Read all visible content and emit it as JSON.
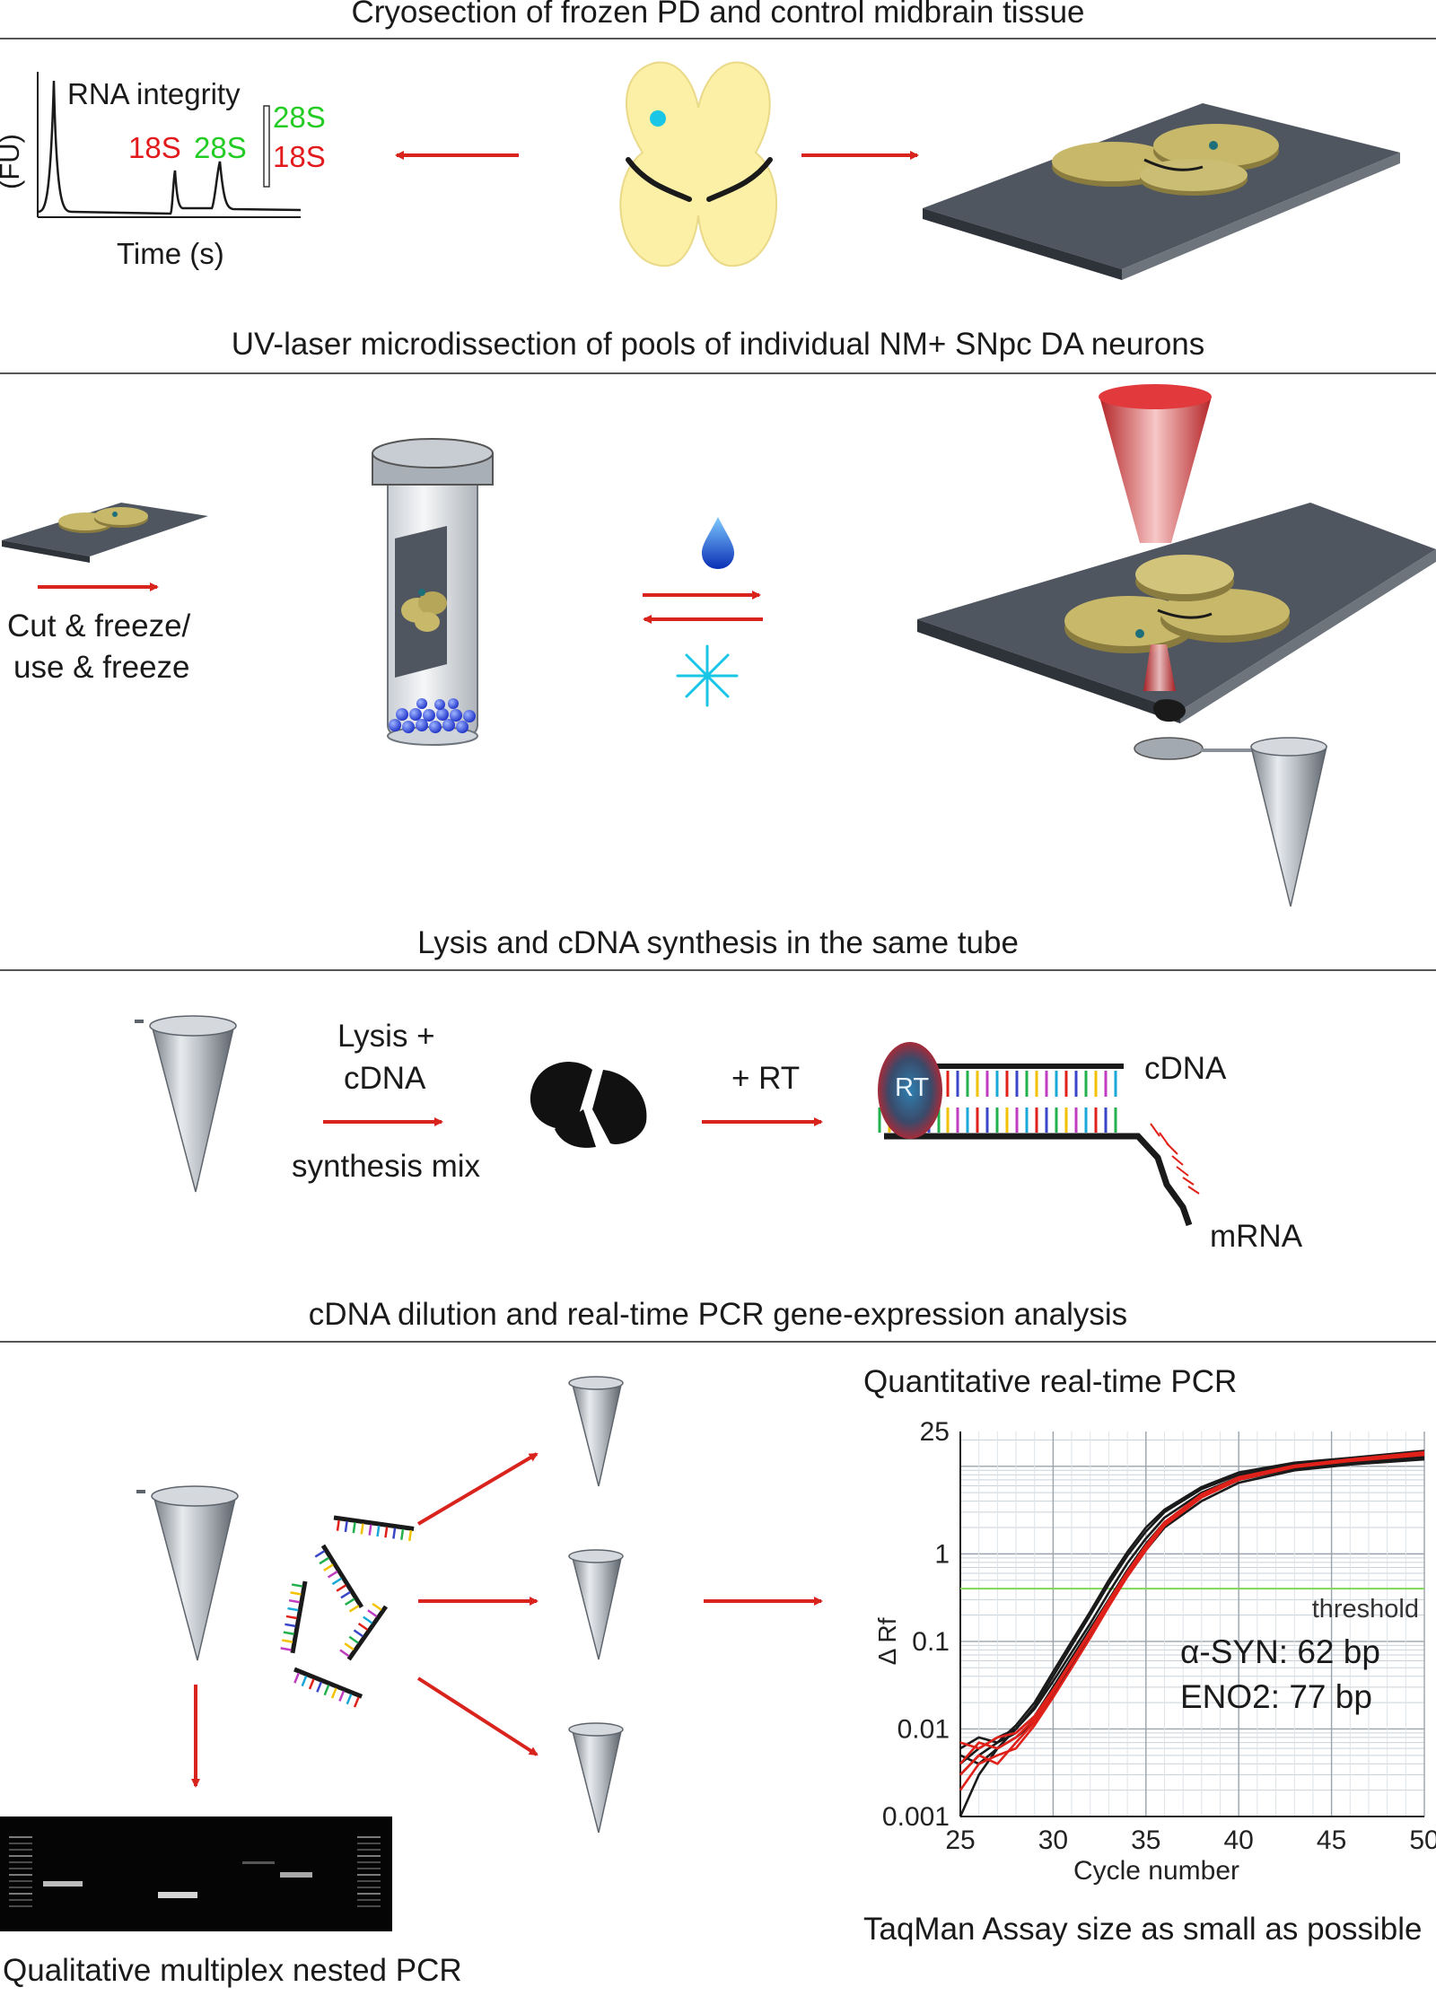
{
  "sections": {
    "s1": {
      "heading": "Cryosection of frozen PD and control midbrain tissue"
    },
    "s2": {
      "heading": "UV-laser microdissection of pools of individual NM+ SNpc DA neurons"
    },
    "s3": {
      "heading": "Lysis and cDNA synthesis in the same tube"
    },
    "s4": {
      "heading": "cDNA dilution and real-time PCR gene-expression analysis"
    }
  },
  "rna_panel": {
    "title": "RNA integrity",
    "ylabel": "(FU)",
    "xlabel": "Time (s)",
    "peak_18s": "18S",
    "peak_28s": "28S",
    "ratio_top": "28S",
    "ratio_bottom": "18S",
    "color_18s": "#e31a1c",
    "color_28s": "#22cc22"
  },
  "ulm": {
    "cut_label_1": "Cut & freeze/",
    "cut_label_2": "use & freeze"
  },
  "lysis": {
    "mix_label_1": "Lysis +",
    "mix_label_2": "cDNA",
    "mix_label_3": "synthesis mix",
    "rt_step": "+ RT",
    "rt_badge": "RT",
    "cdna": "cDNA",
    "mrna": "mRNA"
  },
  "pcr": {
    "qpcr_title": "Quantitative real-time PCR",
    "qualitative_caption": "Qualitative multiplex nested PCR",
    "taqman_caption": "TaqMan Assay size as small as possible",
    "assay_1": "α-SYN: 62 bp",
    "assay_2": "ENO2: 77 bp"
  },
  "colors": {
    "arrow_red": "#d9231d",
    "tissue_yellow": "#fbf0a6",
    "slide_gray": "#4f5660",
    "cyan": "#19c6e6",
    "threshold_green": "#7fd65a"
  },
  "chart_data": {
    "type": "line",
    "title": "Quantitative real-time PCR",
    "xlabel": "Cycle number",
    "ylabel": "Δ Rf",
    "xlim": [
      25,
      50
    ],
    "ylim": [
      0.001,
      25
    ],
    "yscale": "log",
    "x_ticks": [
      "25",
      "30",
      "35",
      "40",
      "45",
      "50"
    ],
    "y_ticks": [
      "0.001",
      "0.01",
      "0.1",
      "1",
      "25"
    ],
    "threshold": {
      "label": "threshold",
      "value": 0.4
    },
    "grid": true,
    "series": [
      {
        "color": "#1a1a1a",
        "x": [
          25,
          26,
          27,
          28,
          29,
          30,
          31,
          32,
          33,
          34,
          35,
          36,
          38,
          40,
          43,
          46,
          50
        ],
        "y": [
          0.004,
          0.006,
          0.008,
          0.01,
          0.018,
          0.04,
          0.09,
          0.2,
          0.45,
          0.95,
          1.8,
          3,
          5.5,
          8,
          10.5,
          12,
          14
        ]
      },
      {
        "color": "#1a1a1a",
        "x": [
          25,
          26,
          27,
          28,
          29,
          30,
          31,
          32,
          33,
          34,
          35,
          36,
          38,
          40,
          43,
          46,
          50
        ],
        "y": [
          0.003,
          0.005,
          0.007,
          0.011,
          0.02,
          0.045,
          0.1,
          0.22,
          0.5,
          1.05,
          2,
          3.2,
          5.8,
          8.5,
          11,
          12.5,
          15
        ]
      },
      {
        "color": "#1a1a1a",
        "x": [
          25,
          26,
          27,
          28,
          29,
          30,
          31,
          32,
          33,
          34,
          35,
          36,
          38,
          40,
          43,
          46,
          50
        ],
        "y": [
          0.006,
          0.008,
          0.007,
          0.009,
          0.014,
          0.03,
          0.065,
          0.14,
          0.3,
          0.65,
          1.3,
          2.3,
          4.5,
          7,
          9.5,
          11,
          12.5
        ]
      },
      {
        "color": "#1a1a1a",
        "x": [
          25,
          26,
          27,
          28,
          29,
          30,
          31,
          32,
          33,
          34,
          35,
          36,
          38,
          40,
          43,
          46,
          50
        ],
        "y": [
          0.001,
          0.003,
          0.006,
          0.01,
          0.017,
          0.035,
          0.075,
          0.16,
          0.36,
          0.78,
          1.5,
          2.6,
          5,
          7.5,
          10,
          11.5,
          13
        ]
      },
      {
        "color": "#1a1a1a",
        "x": [
          25,
          26,
          27,
          28,
          29,
          30,
          31,
          32,
          33,
          34,
          35,
          36,
          38,
          40,
          43,
          46,
          50
        ],
        "y": [
          0.005,
          0.004,
          0.006,
          0.008,
          0.012,
          0.025,
          0.055,
          0.12,
          0.26,
          0.55,
          1.1,
          2,
          4,
          6.5,
          9,
          10.5,
          12
        ]
      },
      {
        "color": "#e0211a",
        "x": [
          25,
          26,
          27,
          28,
          29,
          30,
          31,
          32,
          33,
          34,
          35,
          36,
          38,
          40,
          43,
          46,
          50
        ],
        "y": [
          0.003,
          0.005,
          0.004,
          0.007,
          0.012,
          0.026,
          0.058,
          0.13,
          0.28,
          0.6,
          1.2,
          2.2,
          4.6,
          7.2,
          10,
          11.8,
          14
        ]
      },
      {
        "color": "#e0211a",
        "x": [
          25,
          26,
          27,
          28,
          29,
          30,
          31,
          32,
          33,
          34,
          35,
          36,
          38,
          40,
          43,
          46,
          50
        ],
        "y": [
          0.007,
          0.006,
          0.008,
          0.009,
          0.014,
          0.028,
          0.06,
          0.13,
          0.29,
          0.62,
          1.25,
          2.3,
          4.8,
          7.5,
          10.2,
          12,
          14.5
        ]
      },
      {
        "color": "#e0211a",
        "x": [
          25,
          26,
          27,
          28,
          29,
          30,
          31,
          32,
          33,
          34,
          35,
          36,
          38,
          40,
          43,
          46,
          50
        ],
        "y": [
          0.002,
          0.004,
          0.005,
          0.006,
          0.011,
          0.023,
          0.05,
          0.11,
          0.25,
          0.55,
          1.1,
          2.1,
          4.4,
          7,
          9.8,
          11.5,
          13.5
        ]
      },
      {
        "color": "#e0211a",
        "x": [
          25,
          26,
          27,
          28,
          29,
          30,
          31,
          32,
          33,
          34,
          35,
          36,
          38,
          40,
          43,
          46,
          50
        ],
        "y": [
          0.004,
          0.007,
          0.006,
          0.008,
          0.013,
          0.027,
          0.057,
          0.125,
          0.27,
          0.58,
          1.18,
          2.15,
          4.5,
          7.1,
          9.9,
          11.6,
          13.8
        ]
      }
    ]
  }
}
